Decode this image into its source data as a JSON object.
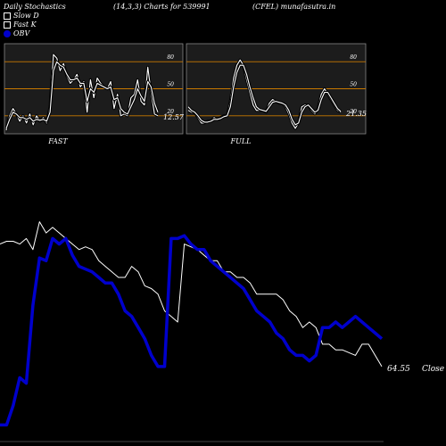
{
  "header": {
    "title": "Daily Stochastics",
    "params": "(14,3,3) Charts for 539991",
    "symbol": "(CFEL) munafasutra.in"
  },
  "legend": [
    {
      "label": "Slow  D",
      "color": "#000000"
    },
    {
      "label": "Fast K",
      "color": "#000000"
    },
    {
      "label": "OBV",
      "color": "#0000cc"
    }
  ],
  "colors": {
    "obv": "#0000cc",
    "price": "#ffffff",
    "level": "#c87800",
    "panel": "#1c1c1c"
  },
  "chart_data": [
    {
      "type": "line",
      "title": "FAST",
      "ylim": [
        0,
        100
      ],
      "levels": [
        80,
        50,
        20
      ],
      "last_value_label": "12.57",
      "series": [
        {
          "values": [
            4,
            20,
            28,
            22,
            14,
            20,
            12,
            22,
            10,
            20,
            14,
            18,
            12,
            30,
            88,
            84,
            70,
            78,
            64,
            56,
            60,
            66,
            52,
            58,
            24,
            60,
            40,
            62,
            56,
            52,
            50,
            58,
            28,
            44,
            20,
            22,
            20,
            40,
            44,
            60,
            36,
            32,
            74,
            46,
            22,
            20
          ]
        },
        {
          "values": [
            6,
            16,
            24,
            22,
            18,
            18,
            16,
            18,
            14,
            16,
            15,
            16,
            14,
            24,
            70,
            80,
            76,
            74,
            66,
            60,
            60,
            62,
            56,
            56,
            36,
            50,
            46,
            56,
            54,
            52,
            50,
            52,
            38,
            40,
            28,
            24,
            22,
            30,
            38,
            50,
            42,
            36,
            58,
            52,
            34,
            24
          ]
        }
      ]
    },
    {
      "type": "line",
      "title": "FULL",
      "ylim": [
        0,
        100
      ],
      "levels": [
        80,
        50,
        20
      ],
      "last_value_label": "21.35",
      "series": [
        {
          "values": [
            26,
            24,
            24,
            18,
            12,
            12,
            14,
            14,
            18,
            16,
            18,
            20,
            20,
            36,
            62,
            76,
            82,
            76,
            60,
            46,
            32,
            26,
            26,
            26,
            24,
            34,
            38,
            36,
            34,
            34,
            30,
            22,
            12,
            6,
            12,
            30,
            32,
            32,
            26,
            22,
            28,
            44,
            50,
            44,
            38,
            32,
            26,
            24
          ]
        },
        {
          "values": [
            30,
            26,
            24,
            20,
            15,
            13,
            13,
            14,
            16,
            16,
            17,
            19,
            20,
            30,
            52,
            68,
            76,
            76,
            66,
            52,
            40,
            30,
            27,
            26,
            25,
            30,
            35,
            36,
            35,
            34,
            32,
            26,
            16,
            10,
            12,
            24,
            30,
            32,
            28,
            24,
            26,
            38,
            46,
            46,
            40,
            34,
            28,
            25
          ]
        }
      ]
    },
    {
      "type": "line",
      "title": "",
      "last_value_label": "64.55",
      "last_value_suffix": "Close",
      "series": [
        {
          "name": "Close",
          "values": [
            70,
            71,
            71,
            70,
            72,
            68,
            78,
            74,
            76,
            74,
            72,
            70,
            68,
            69,
            68,
            64,
            62,
            60,
            58,
            58,
            62,
            60,
            55,
            54,
            52,
            46,
            44,
            42,
            70,
            69,
            68,
            66,
            64,
            64,
            60,
            60,
            58,
            58,
            56,
            52,
            52,
            52,
            52,
            50,
            46,
            44,
            40,
            42,
            40,
            34,
            34,
            32,
            32,
            31,
            30,
            34,
            34,
            30,
            26
          ]
        },
        {
          "name": "OBV",
          "values": [
            5,
            5,
            12,
            22,
            20,
            48,
            65,
            64,
            72,
            70,
            72,
            66,
            62,
            61,
            60,
            58,
            56,
            56,
            52,
            46,
            44,
            40,
            36,
            30,
            26,
            26,
            72,
            72,
            73,
            70,
            68,
            68,
            64,
            62,
            60,
            58,
            56,
            54,
            50,
            46,
            44,
            42,
            38,
            36,
            32,
            30,
            30,
            28,
            30,
            40,
            40,
            42,
            40,
            42,
            44,
            42,
            40,
            38,
            36
          ]
        }
      ]
    }
  ]
}
